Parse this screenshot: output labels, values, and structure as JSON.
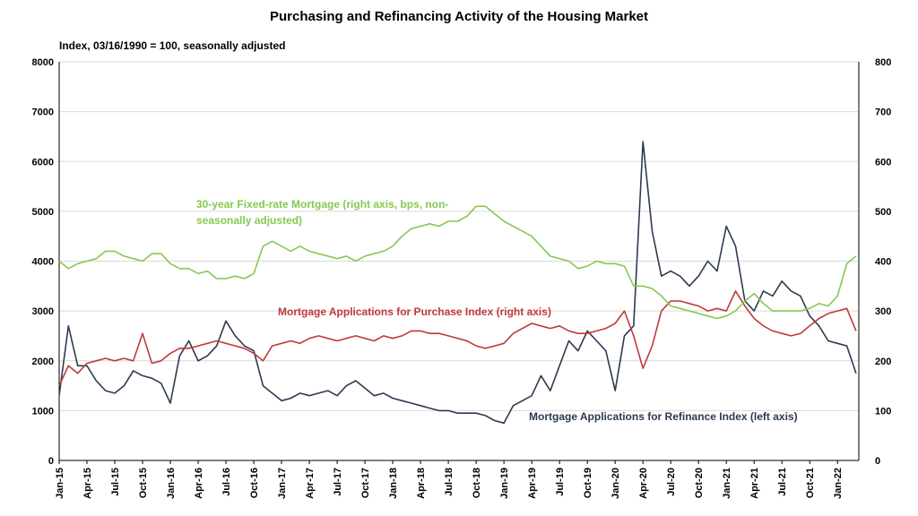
{
  "chart_data": {
    "type": "line",
    "title": "Purchasing and Refinancing Activity of the Housing Market",
    "subtitle": "Index, 03/16/1990 = 100, seasonally adjusted",
    "x_ticks": [
      "Jan-15",
      "Apr-15",
      "Jul-15",
      "Oct-15",
      "Jan-16",
      "Apr-16",
      "Jul-16",
      "Oct-16",
      "Jan-17",
      "Apr-17",
      "Jul-17",
      "Oct-17",
      "Jan-18",
      "Apr-18",
      "Jul-18",
      "Oct-18",
      "Jan-19",
      "Apr-19",
      "Jul-19",
      "Oct-19",
      "Jan-20",
      "Apr-20",
      "Jul-20",
      "Oct-20",
      "Jan-21",
      "Apr-21",
      "Jul-21",
      "Oct-21",
      "Jan-22"
    ],
    "y_left": {
      "ticks": [
        "0",
        "1000",
        "2000",
        "3000",
        "4000",
        "5000",
        "6000",
        "7000",
        "8000"
      ],
      "range": [
        0,
        8000
      ]
    },
    "y_right": {
      "ticks": [
        "0",
        "100",
        "200",
        "300",
        "400",
        "500",
        "600",
        "700",
        "800"
      ],
      "range": [
        0,
        800
      ]
    },
    "grid": "horizontal",
    "colors": {
      "refinance": "#2c3a50",
      "purchase": "#c0393a",
      "mortgage_rate": "#86c852",
      "grid": "#d9d9d9"
    },
    "series": [
      {
        "name": "Mortgage Applications for Refinance Index (left axis)",
        "axis": "left",
        "x": [
          "2015-01",
          "2015-02",
          "2015-03",
          "2015-04",
          "2015-05",
          "2015-06",
          "2015-07",
          "2015-08",
          "2015-09",
          "2015-10",
          "2015-11",
          "2015-12",
          "2016-01",
          "2016-02",
          "2016-03",
          "2016-04",
          "2016-05",
          "2016-06",
          "2016-07",
          "2016-08",
          "2016-09",
          "2016-10",
          "2016-11",
          "2016-12",
          "2017-01",
          "2017-02",
          "2017-03",
          "2017-04",
          "2017-05",
          "2017-06",
          "2017-07",
          "2017-08",
          "2017-09",
          "2017-10",
          "2017-11",
          "2017-12",
          "2018-01",
          "2018-02",
          "2018-03",
          "2018-04",
          "2018-05",
          "2018-06",
          "2018-07",
          "2018-08",
          "2018-09",
          "2018-10",
          "2018-11",
          "2018-12",
          "2019-01",
          "2019-02",
          "2019-03",
          "2019-04",
          "2019-05",
          "2019-06",
          "2019-07",
          "2019-08",
          "2019-09",
          "2019-10",
          "2019-11",
          "2019-12",
          "2020-01",
          "2020-02",
          "2020-03",
          "2020-04",
          "2020-05",
          "2020-06",
          "2020-07",
          "2020-08",
          "2020-09",
          "2020-10",
          "2020-11",
          "2020-12",
          "2021-01",
          "2021-02",
          "2021-03",
          "2021-04",
          "2021-05",
          "2021-06",
          "2021-07",
          "2021-08",
          "2021-09",
          "2021-10",
          "2021-11",
          "2021-12",
          "2022-01",
          "2022-02",
          "2022-03"
        ],
        "values": [
          1300,
          2700,
          1900,
          1900,
          1600,
          1400,
          1350,
          1500,
          1800,
          1700,
          1650,
          1550,
          1150,
          2100,
          2400,
          2000,
          2100,
          2300,
          2800,
          2500,
          2300,
          2200,
          1500,
          1350,
          1200,
          1250,
          1350,
          1300,
          1350,
          1400,
          1300,
          1500,
          1600,
          1450,
          1300,
          1350,
          1250,
          1200,
          1150,
          1100,
          1050,
          1000,
          1000,
          950,
          950,
          950,
          900,
          800,
          750,
          1100,
          1200,
          1300,
          1700,
          1400,
          1900,
          2400,
          2200,
          2600,
          2400,
          2200,
          1400,
          2500,
          2700,
          6400,
          4600,
          3700,
          3800,
          3700,
          3500,
          3700,
          4000,
          3800,
          4700,
          4300,
          3200,
          3000,
          3400,
          3300,
          3600,
          3400,
          3300,
          2900,
          2700,
          2400,
          2350,
          2300,
          1750
        ]
      },
      {
        "name": "Mortgage Applications for Purchase Index (right axis)",
        "axis": "right",
        "x": [
          "2015-01",
          "2015-02",
          "2015-03",
          "2015-04",
          "2015-05",
          "2015-06",
          "2015-07",
          "2015-08",
          "2015-09",
          "2015-10",
          "2015-11",
          "2015-12",
          "2016-01",
          "2016-02",
          "2016-03",
          "2016-04",
          "2016-05",
          "2016-06",
          "2016-07",
          "2016-08",
          "2016-09",
          "2016-10",
          "2016-11",
          "2016-12",
          "2017-01",
          "2017-02",
          "2017-03",
          "2017-04",
          "2017-05",
          "2017-06",
          "2017-07",
          "2017-08",
          "2017-09",
          "2017-10",
          "2017-11",
          "2017-12",
          "2018-01",
          "2018-02",
          "2018-03",
          "2018-04",
          "2018-05",
          "2018-06",
          "2018-07",
          "2018-08",
          "2018-09",
          "2018-10",
          "2018-11",
          "2018-12",
          "2019-01",
          "2019-02",
          "2019-03",
          "2019-04",
          "2019-05",
          "2019-06",
          "2019-07",
          "2019-08",
          "2019-09",
          "2019-10",
          "2019-11",
          "2019-12",
          "2020-01",
          "2020-02",
          "2020-03",
          "2020-04",
          "2020-05",
          "2020-06",
          "2020-07",
          "2020-08",
          "2020-09",
          "2020-10",
          "2020-11",
          "2020-12",
          "2021-01",
          "2021-02",
          "2021-03",
          "2021-04",
          "2021-05",
          "2021-06",
          "2021-07",
          "2021-08",
          "2021-09",
          "2021-10",
          "2021-11",
          "2021-12",
          "2022-01",
          "2022-02",
          "2022-03"
        ],
        "values": [
          150,
          190,
          175,
          195,
          200,
          205,
          200,
          205,
          200,
          255,
          195,
          200,
          215,
          225,
          225,
          230,
          235,
          240,
          235,
          230,
          225,
          215,
          200,
          230,
          235,
          240,
          235,
          245,
          250,
          245,
          240,
          245,
          250,
          245,
          240,
          250,
          245,
          250,
          260,
          260,
          255,
          255,
          250,
          245,
          240,
          230,
          225,
          230,
          235,
          255,
          265,
          275,
          270,
          265,
          270,
          260,
          255,
          255,
          260,
          265,
          275,
          300,
          250,
          185,
          230,
          300,
          320,
          320,
          315,
          310,
          300,
          305,
          300,
          340,
          310,
          285,
          270,
          260,
          255,
          250,
          255,
          270,
          285,
          295,
          300,
          305,
          260
        ]
      },
      {
        "name": "30-year Fixed-rate Mortgage (right axis, bps, non-seasonally adjusted)",
        "axis": "right",
        "x": [
          "2015-01",
          "2015-02",
          "2015-03",
          "2015-04",
          "2015-05",
          "2015-06",
          "2015-07",
          "2015-08",
          "2015-09",
          "2015-10",
          "2015-11",
          "2015-12",
          "2016-01",
          "2016-02",
          "2016-03",
          "2016-04",
          "2016-05",
          "2016-06",
          "2016-07",
          "2016-08",
          "2016-09",
          "2016-10",
          "2016-11",
          "2016-12",
          "2017-01",
          "2017-02",
          "2017-03",
          "2017-04",
          "2017-05",
          "2017-06",
          "2017-07",
          "2017-08",
          "2017-09",
          "2017-10",
          "2017-11",
          "2017-12",
          "2018-01",
          "2018-02",
          "2018-03",
          "2018-04",
          "2018-05",
          "2018-06",
          "2018-07",
          "2018-08",
          "2018-09",
          "2018-10",
          "2018-11",
          "2018-12",
          "2019-01",
          "2019-02",
          "2019-03",
          "2019-04",
          "2019-05",
          "2019-06",
          "2019-07",
          "2019-08",
          "2019-09",
          "2019-10",
          "2019-11",
          "2019-12",
          "2020-01",
          "2020-02",
          "2020-03",
          "2020-04",
          "2020-05",
          "2020-06",
          "2020-07",
          "2020-08",
          "2020-09",
          "2020-10",
          "2020-11",
          "2020-12",
          "2021-01",
          "2021-02",
          "2021-03",
          "2021-04",
          "2021-05",
          "2021-06",
          "2021-07",
          "2021-08",
          "2021-09",
          "2021-10",
          "2021-11",
          "2021-12",
          "2022-01",
          "2022-02",
          "2022-03"
        ],
        "values": [
          400,
          385,
          395,
          400,
          405,
          420,
          420,
          410,
          405,
          400,
          415,
          415,
          395,
          385,
          385,
          375,
          380,
          365,
          365,
          370,
          365,
          375,
          430,
          440,
          430,
          420,
          430,
          420,
          415,
          410,
          405,
          410,
          400,
          410,
          415,
          420,
          430,
          450,
          465,
          470,
          475,
          470,
          480,
          480,
          490,
          510,
          510,
          495,
          480,
          470,
          460,
          450,
          430,
          410,
          405,
          400,
          385,
          390,
          400,
          395,
          395,
          390,
          350,
          350,
          345,
          330,
          310,
          305,
          300,
          295,
          290,
          285,
          290,
          300,
          320,
          335,
          315,
          300,
          300,
          300,
          300,
          305,
          315,
          310,
          330,
          395,
          410
        ]
      }
    ],
    "annotations": [
      {
        "id": "rate",
        "lines": [
          "30-year Fixed-rate Mortgage (right axis, bps, non-",
          "seasonally adjusted)"
        ]
      },
      {
        "id": "purchase",
        "lines": [
          "Mortgage Applications for Purchase Index (right axis)"
        ]
      },
      {
        "id": "refinance",
        "lines": [
          "Mortgage Applications for Refinance Index (left axis)"
        ]
      }
    ]
  }
}
